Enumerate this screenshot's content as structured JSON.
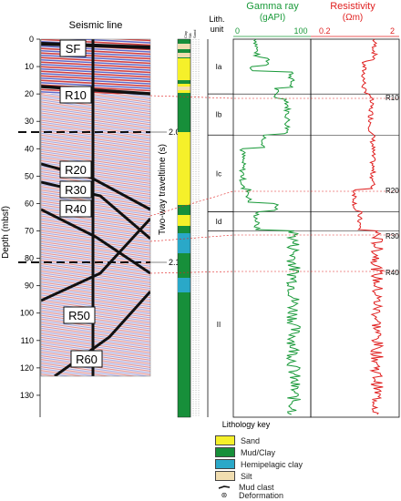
{
  "seismic": {
    "title": "Seismic line",
    "reflectors": [
      "SF",
      "R10",
      "R20",
      "R30",
      "R40",
      "R50",
      "R60"
    ],
    "twt_ticks": [
      "2.0",
      "2.1"
    ]
  },
  "axes": {
    "depth_label": "Depth (mbsf)",
    "depth_ticks": [
      "0",
      "10",
      "20",
      "30",
      "40",
      "50",
      "60",
      "70",
      "80",
      "90",
      "100",
      "110",
      "120",
      "130"
    ],
    "twt_label": "Two-way traveltime (s)"
  },
  "lithology_column_headers": [
    "Clay",
    "Silt",
    "Sand"
  ],
  "lith_unit": {
    "header": "Lith.\nunit",
    "units": [
      {
        "label": "Ia",
        "top": 0,
        "bottom": 20
      },
      {
        "label": "Ib",
        "top": 20,
        "bottom": 35
      },
      {
        "label": "Ic",
        "top": 35,
        "bottom": 63
      },
      {
        "label": "Id",
        "top": 63,
        "bottom": 70
      },
      {
        "label": "II",
        "top": 70,
        "bottom": 138
      }
    ]
  },
  "gamma_ray": {
    "title": "Gamma ray",
    "unit": "(gAPI)",
    "range": [
      "0",
      "100"
    ],
    "color": "#1a9a3a"
  },
  "resistivity": {
    "title": "Resistivity",
    "unit": "(Ωm)",
    "range": [
      "0.2",
      "2"
    ],
    "color": "#e02020"
  },
  "log_markers": [
    "R10",
    "R20",
    "R30",
    "R40"
  ],
  "lithology_key": {
    "title": "Lithology key",
    "items": [
      {
        "label": "Sand",
        "color": "#f5f02a"
      },
      {
        "label": "Mud/Clay",
        "color": "#178f3a"
      },
      {
        "label": "Hemipelagic clay",
        "color": "#2aa8c8"
      },
      {
        "label": "Silt",
        "color": "#f0ddb0"
      },
      {
        "label": "Mud clast",
        "color": "#222222"
      },
      {
        "label": "Deformation",
        "color": "#222222"
      }
    ]
  }
}
